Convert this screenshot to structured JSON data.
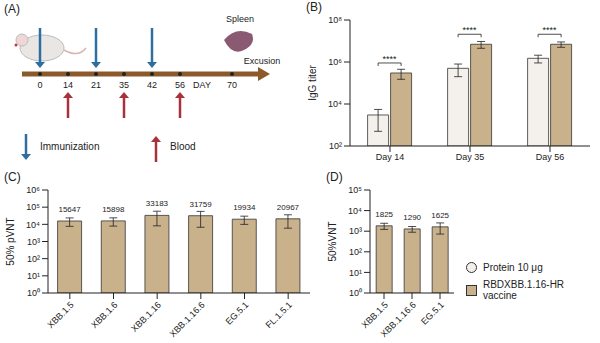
{
  "panel_a": {
    "title": "(A)",
    "days": [
      0,
      14,
      21,
      35,
      42,
      56,
      70
    ],
    "day_label": "DAY",
    "immunization_days": [
      0,
      21,
      42
    ],
    "blood_days": [
      14,
      35,
      56
    ],
    "organ": "Spleen",
    "organ_step": "Excusion",
    "key": {
      "immunization": "Immunization",
      "blood": "Blood"
    }
  },
  "chart_data": [
    {
      "type": "bar",
      "title": "(B)",
      "y_label": "IgG titer",
      "categories": [
        "Day 14",
        "Day 35",
        "Day 56"
      ],
      "series": [
        {
          "name": "Protein 10 μg",
          "color": "#f4f1ec",
          "marker": "circle",
          "values": [
            3000,
            500000,
            1500000
          ],
          "errors": [
            2500,
            300000,
            600000
          ]
        },
        {
          "name": "RBDXBB.1.16-HR vaccine",
          "color": "#c9b18c",
          "marker": "square",
          "values": [
            300000,
            7000000,
            7000000
          ],
          "errors": [
            150000,
            2500000,
            2000000
          ]
        }
      ],
      "log": "y",
      "ylim": [
        100,
        100000000
      ],
      "yticks": [
        {
          "value": 100,
          "label": "10²"
        },
        {
          "value": 10000,
          "label": "10⁴"
        },
        {
          "value": 1000000,
          "label": "10⁶"
        },
        {
          "value": 100000000,
          "label": "10⁸"
        }
      ],
      "annotations": [
        {
          "category": "Day 14",
          "text": "****"
        },
        {
          "category": "Day 35",
          "text": "****"
        },
        {
          "category": "Day 56",
          "text": "****"
        }
      ],
      "legend": "lower right"
    },
    {
      "type": "bar",
      "title": "(C)",
      "y_label": "50% pVNT",
      "categories": [
        "XBB.1.5",
        "XBB.1.6",
        "XBB.1.16",
        "XBB.1.16.6",
        "EG.5.1",
        "FL.1.5.1"
      ],
      "values": [
        15647,
        15898,
        33183,
        31759,
        19934,
        20967
      ],
      "errors": [
        8000,
        8000,
        25000,
        25000,
        10000,
        15000
      ],
      "color": "#c9b18c",
      "data_labels": true,
      "log": "y",
      "ylim": [
        1,
        1000000
      ],
      "yticks": [
        {
          "value": 1,
          "label": "10⁰"
        },
        {
          "value": 10,
          "label": "10¹"
        },
        {
          "value": 100,
          "label": "10²"
        },
        {
          "value": 1000,
          "label": "10³"
        },
        {
          "value": 10000,
          "label": "10⁴"
        },
        {
          "value": 100000,
          "label": "10⁵"
        },
        {
          "value": 1000000,
          "label": "10⁶"
        }
      ]
    },
    {
      "type": "bar",
      "title": "(D)",
      "y_label": "50%VNT",
      "categories": [
        "XBB.1.5",
        "XBB.1.16.6",
        "EG.5.1"
      ],
      "values": [
        1825,
        1290,
        1625
      ],
      "errors": [
        600,
        400,
        900
      ],
      "color": "#c9b18c",
      "data_labels": true,
      "log": "y",
      "ylim": [
        1,
        100000
      ],
      "yticks": [
        {
          "value": 1,
          "label": "10⁰"
        },
        {
          "value": 10,
          "label": "10¹"
        },
        {
          "value": 100,
          "label": "10²"
        },
        {
          "value": 1000,
          "label": "10³"
        },
        {
          "value": 10000,
          "label": "10⁴"
        },
        {
          "value": 100000,
          "label": "10⁵"
        }
      ]
    }
  ]
}
